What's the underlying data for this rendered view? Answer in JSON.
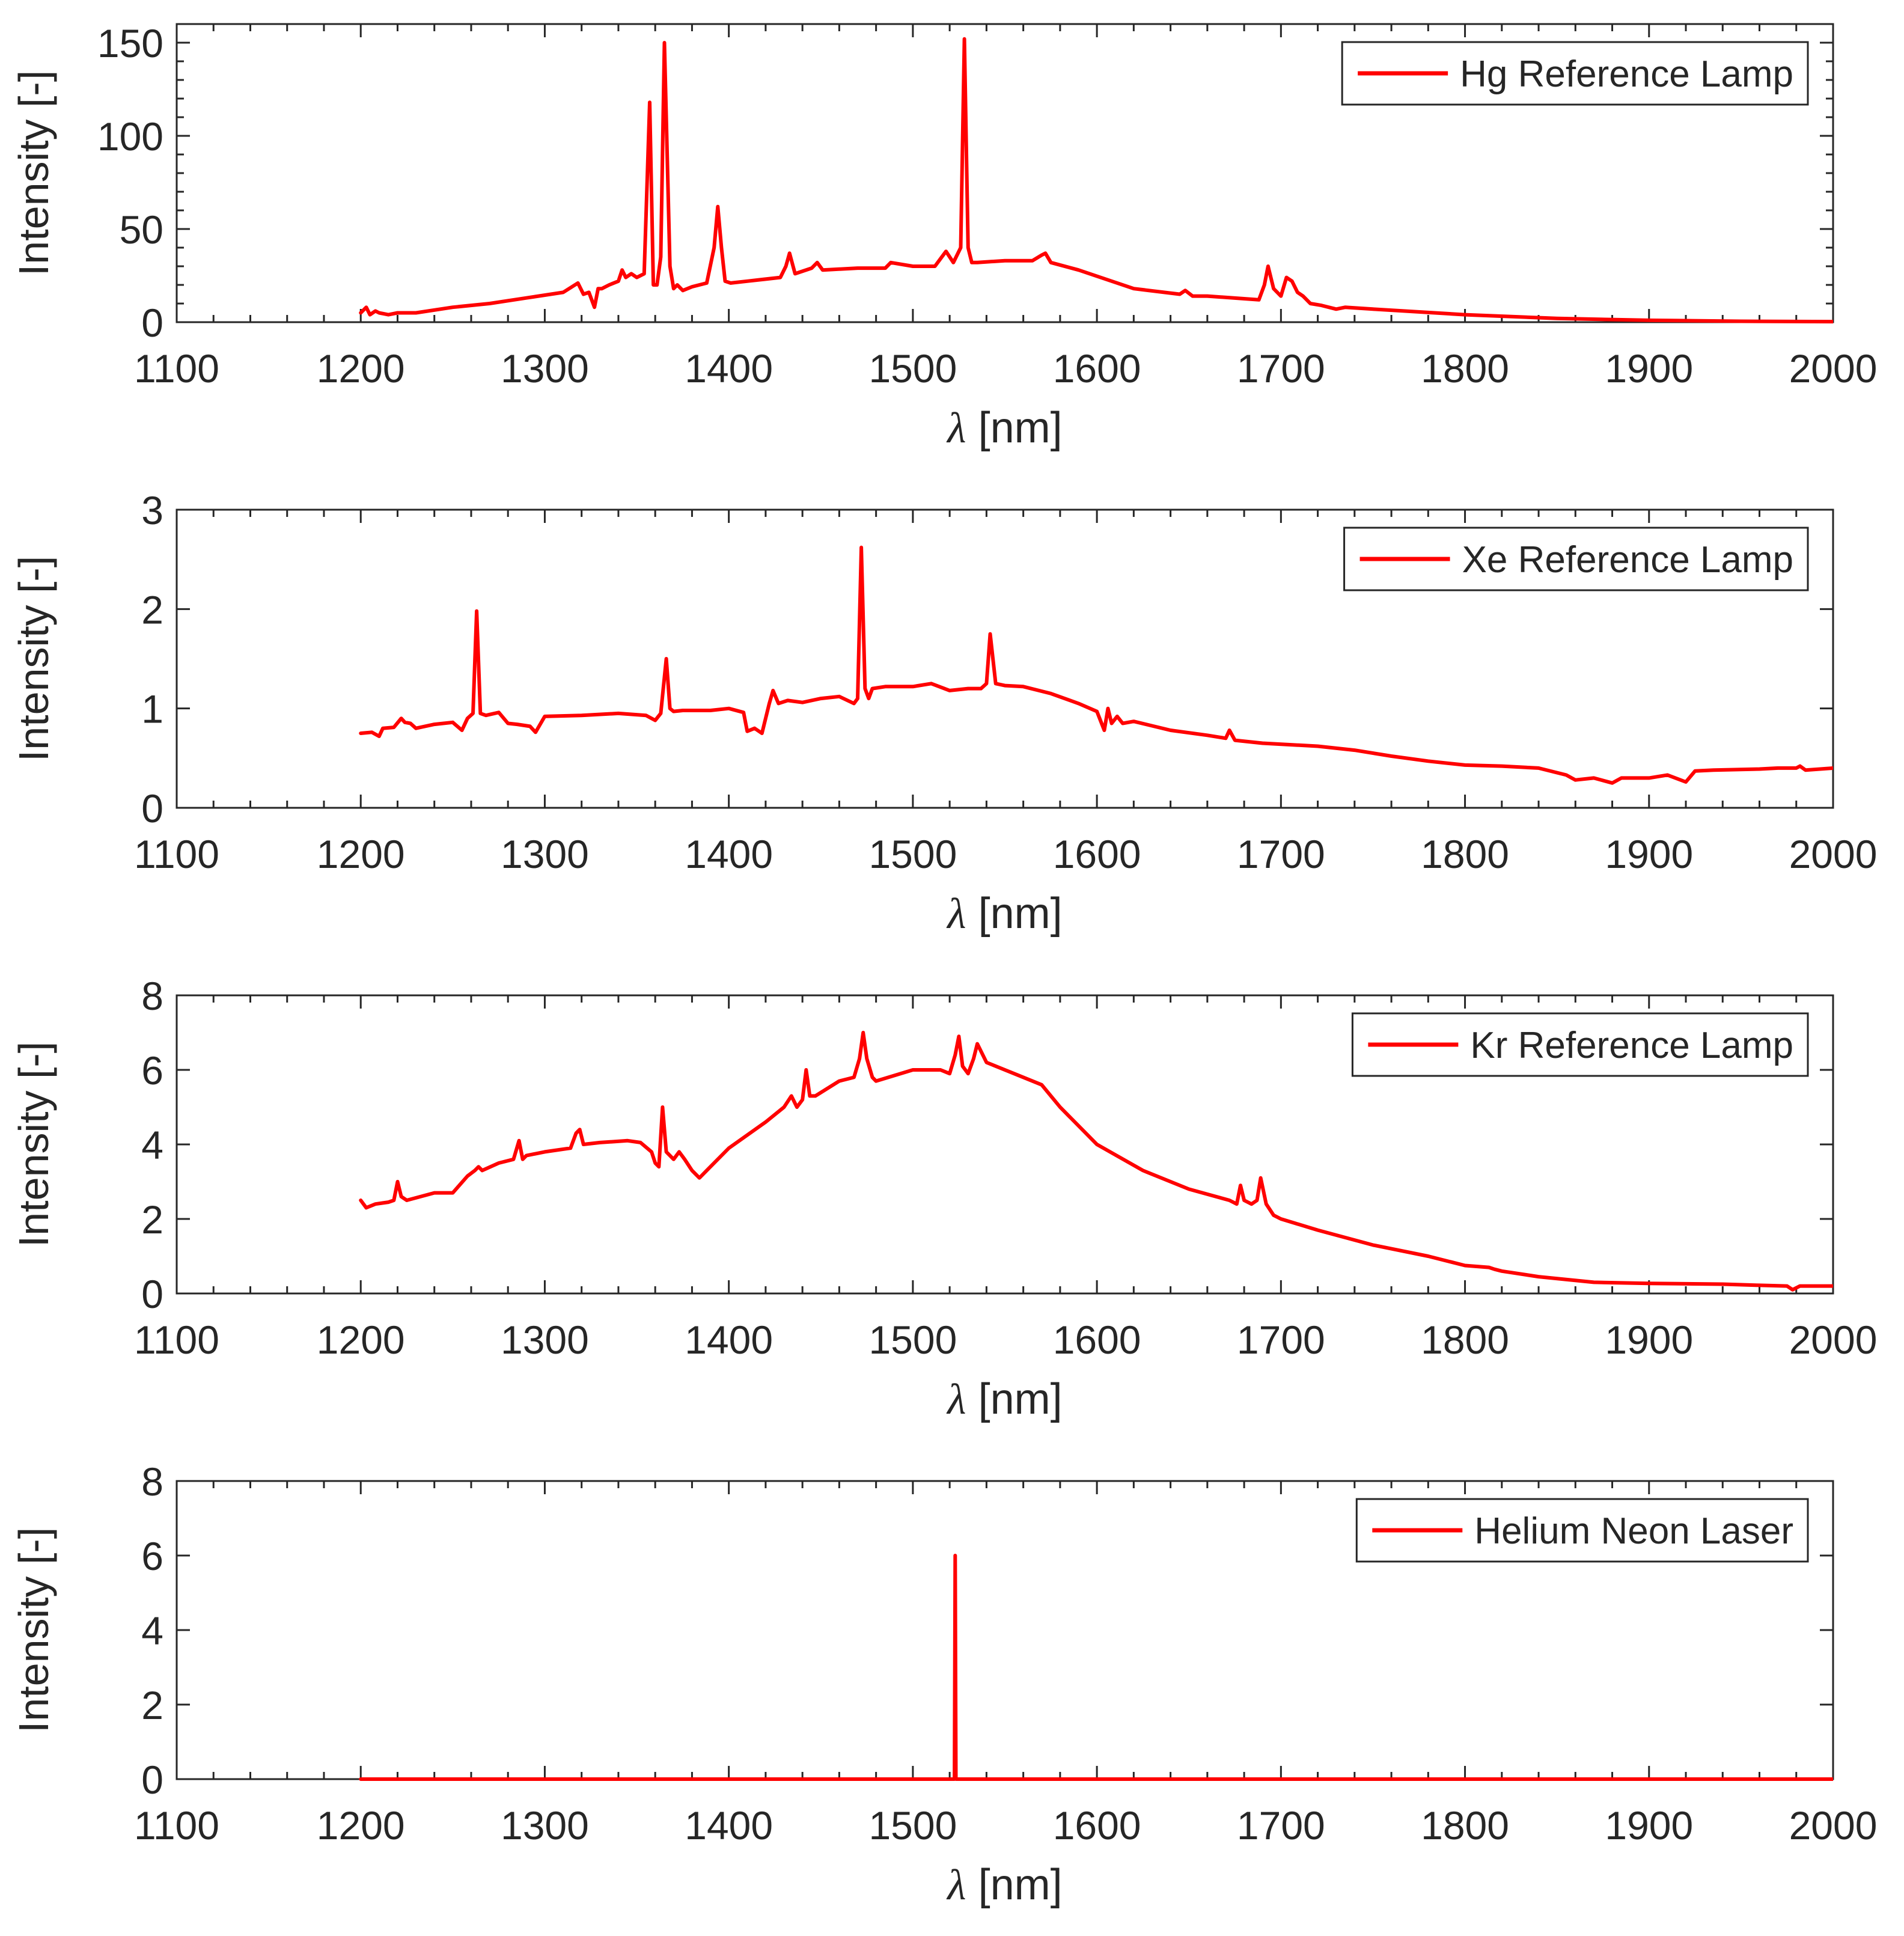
{
  "chart_data": [
    {
      "type": "line",
      "legend": "Hg Reference Lamp",
      "legend_position": "top-right",
      "xlabel_symbol": "λ",
      "xlabel_unit": "[nm]",
      "ylabel": "Intensity [-]",
      "xlim": [
        1100,
        2000
      ],
      "ylim": [
        0,
        160
      ],
      "xticks": [
        1100,
        1200,
        1300,
        1400,
        1500,
        1600,
        1700,
        1800,
        1900,
        2000
      ],
      "yticks": [
        0,
        50,
        100,
        150
      ],
      "color": "#ff0000",
      "x": [
        1200,
        1203,
        1205,
        1208,
        1210,
        1215,
        1220,
        1230,
        1250,
        1270,
        1290,
        1310,
        1318,
        1321,
        1324,
        1327,
        1329,
        1331,
        1335,
        1340,
        1342,
        1344,
        1347,
        1350,
        1354,
        1357,
        1359,
        1361,
        1363,
        1365,
        1368,
        1370,
        1372,
        1375,
        1380,
        1388,
        1392,
        1394,
        1396,
        1398,
        1401,
        1410,
        1428,
        1431,
        1433,
        1436,
        1445,
        1448,
        1451,
        1470,
        1485,
        1488,
        1500,
        1512,
        1515,
        1518,
        1522,
        1526,
        1528,
        1530,
        1532,
        1535,
        1550,
        1565,
        1570,
        1572,
        1575,
        1590,
        1620,
        1645,
        1648,
        1652,
        1660,
        1688,
        1691,
        1693,
        1696,
        1700,
        1703,
        1706,
        1709,
        1712,
        1716,
        1722,
        1730,
        1735,
        1750,
        1800,
        1850,
        1900,
        1950,
        2000
      ],
      "y": [
        5,
        8,
        4,
        6,
        5,
        4,
        5,
        5,
        8,
        10,
        13,
        16,
        21,
        15,
        16,
        8,
        18,
        18,
        20,
        22,
        28,
        24,
        26,
        24,
        26,
        118,
        20,
        20,
        35,
        150,
        30,
        18,
        20,
        17,
        19,
        21,
        40,
        62,
        40,
        22,
        21,
        22,
        24,
        30,
        37,
        26,
        29,
        32,
        28,
        29,
        29,
        32,
        30,
        30,
        34,
        38,
        32,
        40,
        152,
        40,
        32,
        32,
        33,
        33,
        36,
        37,
        32,
        28,
        18,
        15,
        17,
        14,
        14,
        12,
        20,
        30,
        18,
        14,
        24,
        22,
        16,
        14,
        10,
        9,
        7,
        8,
        7,
        4,
        2,
        1,
        0.5,
        0.3
      ]
    },
    {
      "type": "line",
      "legend": "Xe Reference Lamp",
      "legend_position": "top-right",
      "xlabel_symbol": "λ",
      "xlabel_unit": "[nm]",
      "ylabel": "Intensity [-]",
      "xlim": [
        1100,
        2000
      ],
      "ylim": [
        0,
        3
      ],
      "xticks": [
        1100,
        1200,
        1300,
        1400,
        1500,
        1600,
        1700,
        1800,
        1900,
        2000
      ],
      "yticks": [
        0,
        1,
        2,
        3
      ],
      "color": "#ff0000",
      "x": [
        1200,
        1206,
        1210,
        1212,
        1218,
        1222,
        1224,
        1227,
        1230,
        1240,
        1250,
        1255,
        1258,
        1261,
        1263,
        1265,
        1268,
        1275,
        1280,
        1285,
        1292,
        1295,
        1300,
        1320,
        1340,
        1355,
        1360,
        1363,
        1366,
        1368,
        1370,
        1375,
        1390,
        1400,
        1408,
        1410,
        1414,
        1418,
        1422,
        1424,
        1427,
        1432,
        1440,
        1450,
        1460,
        1468,
        1470,
        1472,
        1474,
        1476,
        1478,
        1485,
        1500,
        1510,
        1520,
        1530,
        1537,
        1540,
        1542,
        1545,
        1550,
        1560,
        1575,
        1590,
        1600,
        1604,
        1606,
        1608,
        1611,
        1614,
        1620,
        1640,
        1660,
        1670,
        1672,
        1675,
        1690,
        1720,
        1740,
        1760,
        1780,
        1800,
        1820,
        1840,
        1855,
        1860,
        1870,
        1880,
        1885,
        1900,
        1910,
        1920,
        1925,
        1935,
        1960,
        1970,
        1980,
        1982,
        1985,
        2000
      ],
      "y": [
        0.75,
        0.76,
        0.72,
        0.8,
        0.81,
        0.9,
        0.86,
        0.85,
        0.8,
        0.84,
        0.86,
        0.78,
        0.9,
        0.95,
        1.98,
        0.95,
        0.93,
        0.96,
        0.85,
        0.84,
        0.82,
        0.76,
        0.92,
        0.93,
        0.95,
        0.93,
        0.88,
        0.95,
        1.5,
        1.0,
        0.97,
        0.98,
        0.98,
        1.0,
        0.96,
        0.77,
        0.8,
        0.75,
        1.05,
        1.18,
        1.05,
        1.08,
        1.06,
        1.1,
        1.12,
        1.05,
        1.1,
        2.62,
        1.2,
        1.1,
        1.2,
        1.22,
        1.22,
        1.25,
        1.18,
        1.2,
        1.2,
        1.25,
        1.75,
        1.25,
        1.23,
        1.22,
        1.15,
        1.05,
        0.97,
        0.78,
        1.0,
        0.85,
        0.92,
        0.85,
        0.87,
        0.78,
        0.73,
        0.7,
        0.78,
        0.68,
        0.65,
        0.62,
        0.58,
        0.52,
        0.47,
        0.43,
        0.42,
        0.4,
        0.33,
        0.28,
        0.3,
        0.25,
        0.3,
        0.3,
        0.33,
        0.26,
        0.37,
        0.38,
        0.39,
        0.4,
        0.4,
        0.42,
        0.38,
        0.4
      ]
    },
    {
      "type": "line",
      "legend": "Kr Reference Lamp",
      "legend_position": "top-right",
      "xlabel_symbol": "λ",
      "xlabel_unit": "[nm]",
      "ylabel": "Intensity [-]",
      "xlim": [
        1100,
        2000
      ],
      "ylim": [
        0,
        8
      ],
      "xticks": [
        1100,
        1200,
        1300,
        1400,
        1500,
        1600,
        1700,
        1800,
        1900,
        2000
      ],
      "yticks": [
        0,
        2,
        4,
        6,
        8
      ],
      "color": "#ff0000",
      "x": [
        1200,
        1203,
        1208,
        1215,
        1218,
        1220,
        1222,
        1225,
        1240,
        1250,
        1258,
        1262,
        1264,
        1266,
        1275,
        1283,
        1286,
        1288,
        1290,
        1300,
        1314,
        1317,
        1319,
        1321,
        1330,
        1345,
        1352,
        1358,
        1360,
        1362,
        1364,
        1366,
        1370,
        1373,
        1376,
        1380,
        1384,
        1388,
        1400,
        1420,
        1430,
        1434,
        1437,
        1440,
        1442,
        1444,
        1447,
        1460,
        1468,
        1471,
        1473,
        1475,
        1478,
        1480,
        1500,
        1515,
        1520,
        1523,
        1525,
        1527,
        1530,
        1533,
        1535,
        1540,
        1555,
        1570,
        1580,
        1600,
        1625,
        1650,
        1672,
        1676,
        1678,
        1680,
        1684,
        1687,
        1689,
        1692,
        1696,
        1700,
        1720,
        1750,
        1780,
        1800,
        1813,
        1816,
        1820,
        1840,
        1870,
        1900,
        1940,
        1960,
        1975,
        1978,
        1982,
        2000
      ],
      "y": [
        2.5,
        2.3,
        2.4,
        2.45,
        2.5,
        3.0,
        2.6,
        2.5,
        2.7,
        2.7,
        3.15,
        3.3,
        3.4,
        3.3,
        3.5,
        3.6,
        4.1,
        3.6,
        3.7,
        3.8,
        3.9,
        4.3,
        4.4,
        4.0,
        4.05,
        4.1,
        4.05,
        3.8,
        3.5,
        3.4,
        5.0,
        3.8,
        3.6,
        3.8,
        3.6,
        3.3,
        3.1,
        3.3,
        3.9,
        4.6,
        5.0,
        5.3,
        5.0,
        5.2,
        6.0,
        5.3,
        5.3,
        5.7,
        5.8,
        6.3,
        7.0,
        6.3,
        5.8,
        5.7,
        6.0,
        6.0,
        5.9,
        6.4,
        6.9,
        6.1,
        5.9,
        6.3,
        6.7,
        6.2,
        5.9,
        5.6,
        5.0,
        4.0,
        3.3,
        2.8,
        2.5,
        2.4,
        2.9,
        2.5,
        2.4,
        2.5,
        3.1,
        2.4,
        2.1,
        2.0,
        1.7,
        1.3,
        1.0,
        0.75,
        0.7,
        0.65,
        0.6,
        0.45,
        0.3,
        0.27,
        0.25,
        0.22,
        0.2,
        0.1,
        0.2,
        0.2
      ]
    },
    {
      "type": "line",
      "legend": "Helium Neon Laser",
      "legend_position": "top-right",
      "xlabel_symbol": "λ",
      "xlabel_unit": "[nm]",
      "ylabel": "Intensity [-]",
      "xlim": [
        1100,
        2000
      ],
      "ylim": [
        0,
        8
      ],
      "xticks": [
        1100,
        1200,
        1300,
        1400,
        1500,
        1600,
        1700,
        1800,
        1900,
        2000
      ],
      "yticks": [
        0,
        2,
        4,
        6,
        8
      ],
      "color": "#ff0000",
      "x": [
        1200,
        1522.6,
        1523.0,
        1523.4,
        2000
      ],
      "y": [
        0,
        0,
        6.0,
        0,
        0
      ]
    }
  ]
}
